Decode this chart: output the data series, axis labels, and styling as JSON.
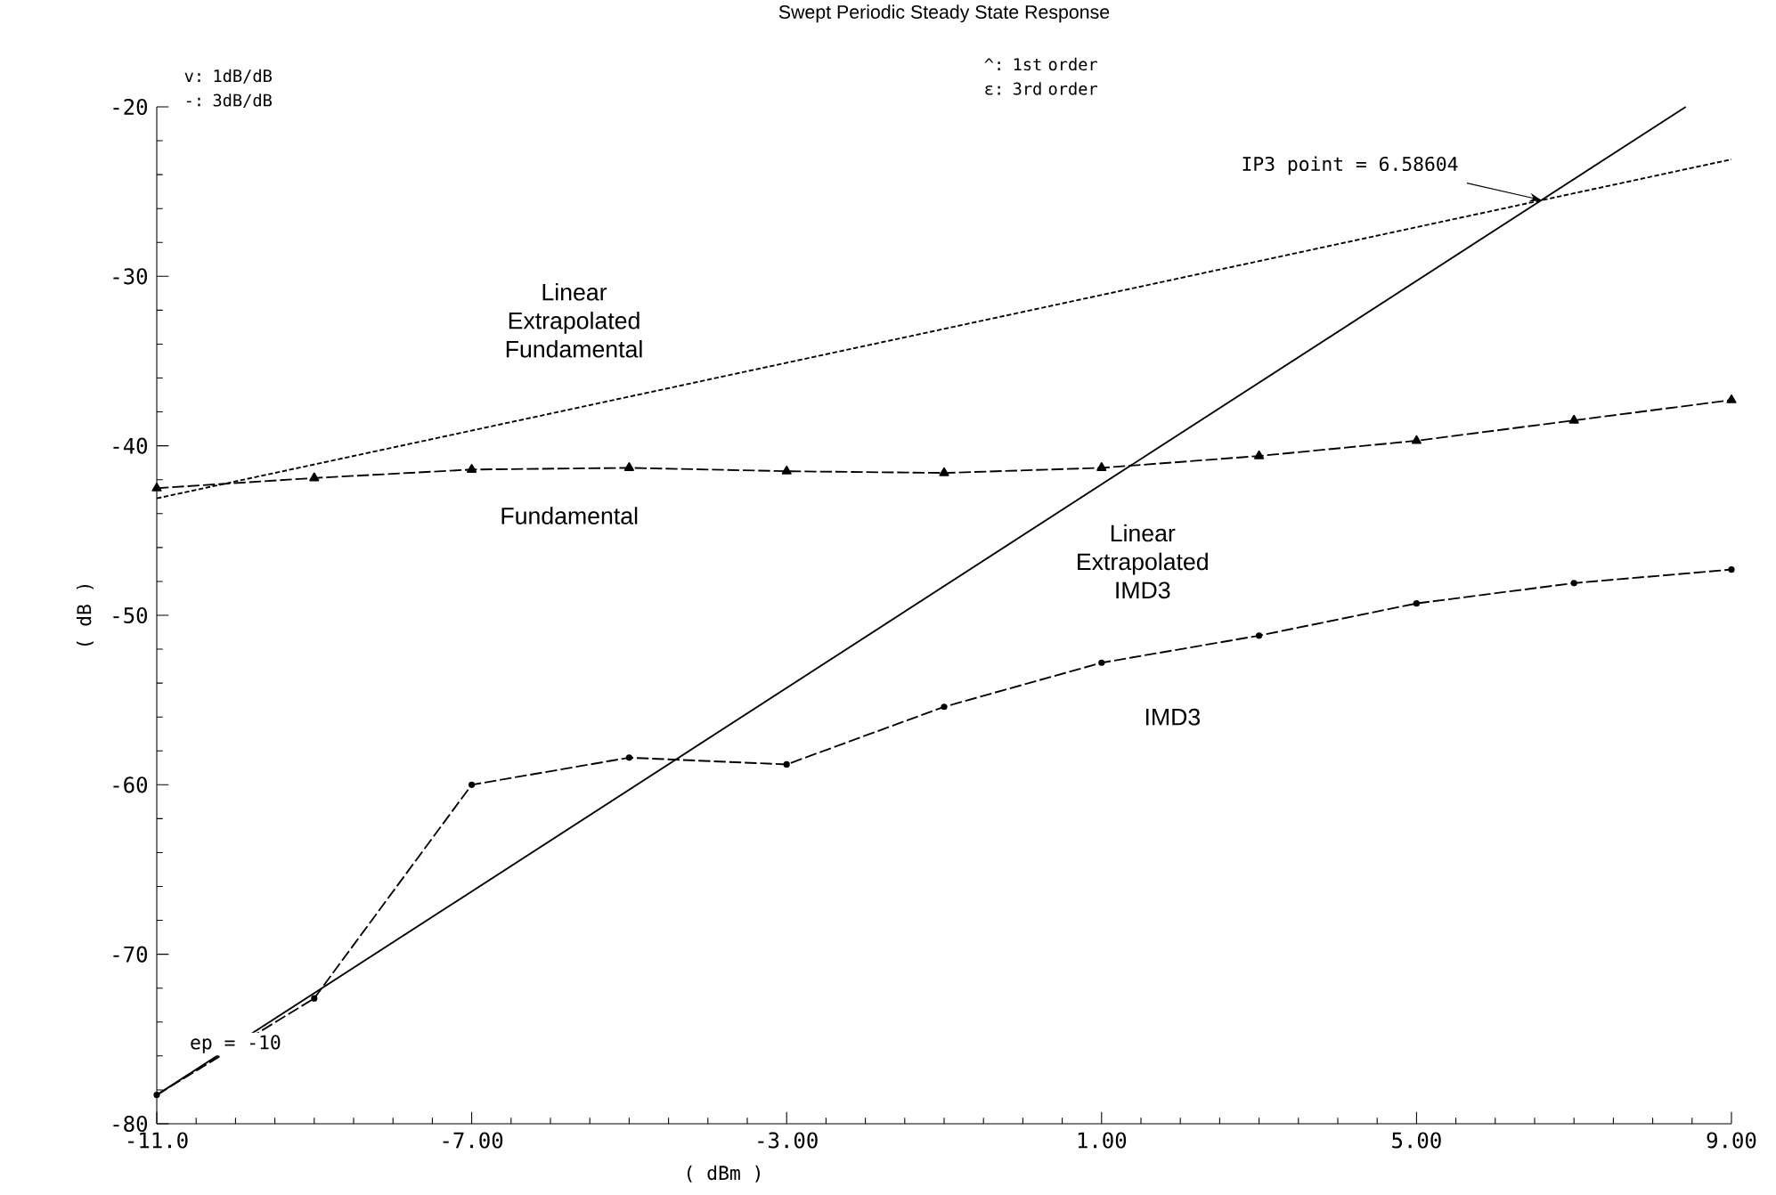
{
  "chart_data": {
    "type": "line",
    "title": "Swept Periodic Steady State Response",
    "xlabel": "( dBm )",
    "ylabel": "( dB )",
    "xlim": [
      -11,
      9
    ],
    "ylim": [
      -80,
      -20
    ],
    "xticks": [
      {
        "value": -11,
        "label": "-11.0"
      },
      {
        "value": -7,
        "label": "-7.00"
      },
      {
        "value": -3,
        "label": "-3.00"
      },
      {
        "value": 1,
        "label": "1.00"
      },
      {
        "value": 5,
        "label": "5.00"
      },
      {
        "value": 9,
        "label": "9.00"
      }
    ],
    "yticks": [
      -80,
      -70,
      -60,
      -50,
      -40,
      -30,
      -20
    ],
    "x": [
      -11,
      -9,
      -7,
      -5,
      -3,
      -1,
      1,
      3,
      5,
      7,
      9
    ],
    "series": [
      {
        "color": "#000000",
        "marker": "triangle",
        "line_style": "dashed",
        "values": [
          -42.5,
          -41.9,
          -41.4,
          -41.3,
          -41.5,
          -41.6,
          -41.3,
          -40.6,
          -39.7,
          -38.5,
          -37.3
        ]
      },
      {
        "color": "#000000",
        "marker": "circle",
        "line_style": "dashed",
        "values": [
          -78.3,
          -72.6,
          -60.0,
          -58.4,
          -58.8,
          -55.4,
          -52.8,
          -51.2,
          -49.3,
          -48.1,
          -47.3
        ]
      },
      {
        "color": "#000000",
        "marker": "none",
        "line_style": "dotted",
        "x": [
          -11,
          9
        ],
        "values": [
          -43.1,
          -23.1
        ]
      },
      {
        "color": "#000000",
        "marker": "none",
        "line_style": "solid",
        "x": [
          -11,
          8.42
        ],
        "values": [
          -78.3,
          -20.0
        ]
      }
    ],
    "annotations": [
      "v: 1dB/dB",
      "-: 3dB/dB",
      "^: 1st order",
      "ε: 3rd order",
      "Linear Extrapolated Fundamental",
      "Fundamental",
      "Linear Extrapolated IMD3",
      "IMD3",
      {
        "text": "IP3 point = 6.58604",
        "x": 6.586,
        "y": -25.5
      },
      {
        "text": "ep = -10",
        "x": -10,
        "y": -75.3
      }
    ]
  }
}
